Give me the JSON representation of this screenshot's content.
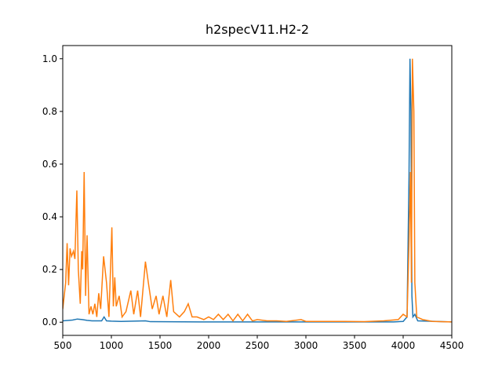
{
  "chart_data": {
    "type": "line",
    "title": "h2specV11.H2-2",
    "xlim": [
      500,
      4500
    ],
    "xticks": [
      500,
      1000,
      1500,
      2000,
      2500,
      3000,
      3500,
      4000,
      4500
    ],
    "ylim": [
      -0.05,
      1.05
    ],
    "yticks": [
      {
        "value": 0,
        "label": "0.0"
      },
      0.2,
      0.4,
      0.6,
      0.8,
      {
        "value": 1,
        "label": "1.0"
      }
    ],
    "series": [
      {
        "color": "#1f77b4",
        "x": [
          500,
          600,
          650,
          700,
          750,
          800,
          900,
          925,
          950,
          1000,
          1100,
          1350,
          1400,
          2000,
          3000,
          3900,
          4000,
          4040,
          4060,
          4070,
          4080,
          4090,
          4100,
          4120,
          4150,
          4500
        ],
        "values": [
          0.005,
          0.008,
          0.012,
          0.01,
          0.007,
          0.005,
          0.005,
          0.02,
          0.005,
          0.004,
          0.003,
          0.005,
          0.002,
          0.001,
          0.001,
          0.001,
          0.003,
          0.02,
          0.55,
          1.0,
          0.8,
          0.1,
          0.02,
          0.03,
          0.005,
          0.001
        ]
      },
      {
        "color": "#ff7f0e",
        "x": [
          500,
          530,
          545,
          560,
          575,
          590,
          610,
          625,
          645,
          660,
          680,
          695,
          705,
          720,
          735,
          750,
          770,
          790,
          810,
          830,
          850,
          870,
          890,
          920,
          950,
          975,
          1005,
          1020,
          1035,
          1050,
          1080,
          1110,
          1150,
          1200,
          1230,
          1270,
          1300,
          1350,
          1380,
          1420,
          1460,
          1490,
          1530,
          1570,
          1610,
          1640,
          1700,
          1750,
          1790,
          1830,
          1880,
          1950,
          2000,
          2050,
          2100,
          2150,
          2200,
          2250,
          2300,
          2350,
          2400,
          2450,
          2500,
          2600,
          2700,
          2800,
          2950,
          3000,
          3200,
          3400,
          3600,
          3800,
          3950,
          4000,
          4040,
          4060,
          4075,
          4085,
          4095,
          4110,
          4120,
          4140,
          4200,
          4300,
          4500
        ],
        "values": [
          0.05,
          0.15,
          0.3,
          0.14,
          0.28,
          0.25,
          0.27,
          0.24,
          0.5,
          0.2,
          0.07,
          0.27,
          0.2,
          0.57,
          0.1,
          0.33,
          0.03,
          0.06,
          0.03,
          0.07,
          0.02,
          0.11,
          0.05,
          0.25,
          0.15,
          0.02,
          0.36,
          0.06,
          0.17,
          0.06,
          0.1,
          0.02,
          0.04,
          0.12,
          0.03,
          0.12,
          0.02,
          0.23,
          0.15,
          0.05,
          0.1,
          0.03,
          0.1,
          0.02,
          0.16,
          0.04,
          0.02,
          0.04,
          0.07,
          0.02,
          0.02,
          0.01,
          0.02,
          0.01,
          0.03,
          0.01,
          0.03,
          0.005,
          0.03,
          0.005,
          0.03,
          0.005,
          0.01,
          0.005,
          0.005,
          0.003,
          0.01,
          0.003,
          0.003,
          0.003,
          0.002,
          0.005,
          0.01,
          0.03,
          0.02,
          0.3,
          0.57,
          0.15,
          1.0,
          0.8,
          0.15,
          0.02,
          0.01,
          0.003,
          0.001
        ]
      }
    ]
  }
}
